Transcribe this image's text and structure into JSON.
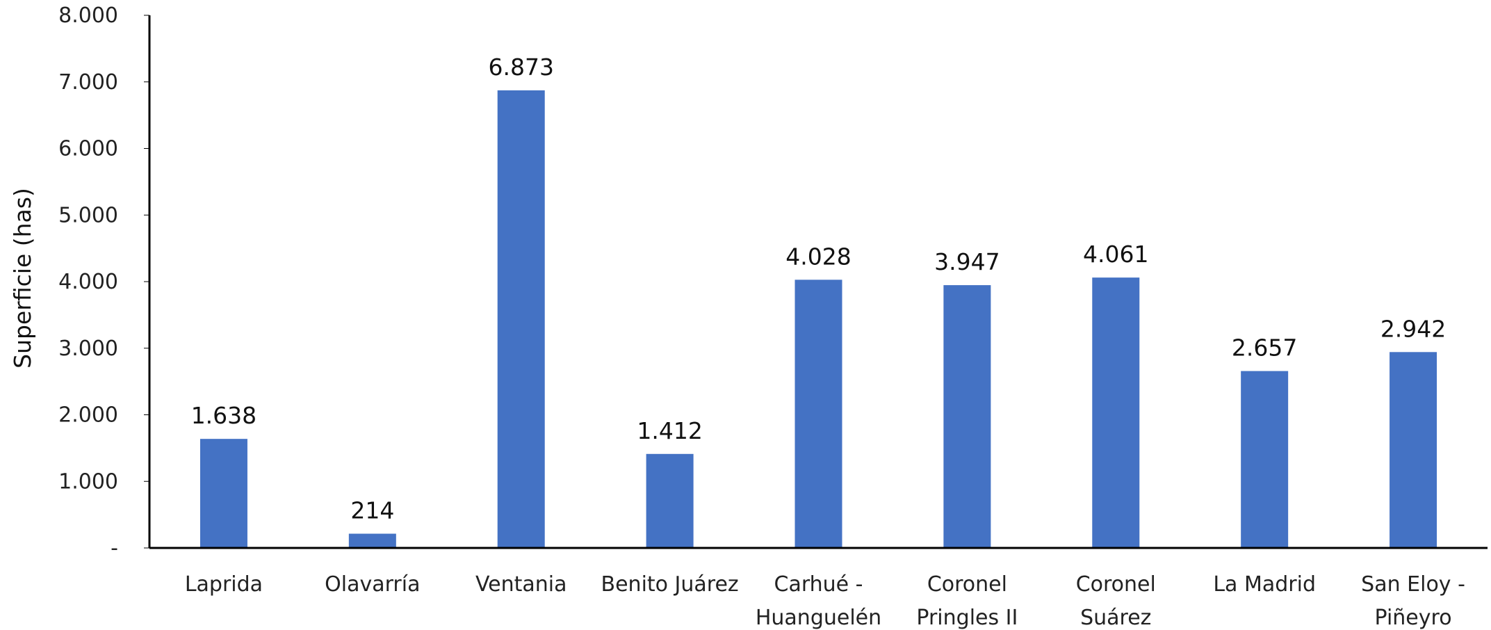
{
  "chart_data": {
    "type": "bar",
    "title": "",
    "xlabel": "",
    "ylabel": "Superficie (has)",
    "ylim": [
      0,
      8000
    ],
    "yticks": [
      0,
      1000,
      2000,
      3000,
      4000,
      5000,
      6000,
      7000,
      8000
    ],
    "ytick_labels": [
      "-",
      "1.000",
      "2.000",
      "3.000",
      "4.000",
      "5.000",
      "6.000",
      "7.000",
      "8.000"
    ],
    "categories": [
      [
        "Laprida"
      ],
      [
        "Olavarría"
      ],
      [
        "Ventania"
      ],
      [
        "Benito Juárez"
      ],
      [
        "Carhué -",
        "Huanguelén"
      ],
      [
        "Coronel",
        "Pringles II"
      ],
      [
        "Coronel",
        "Suárez"
      ],
      [
        "La Madrid"
      ],
      [
        "San Eloy -",
        "Piñeyro"
      ]
    ],
    "values": [
      1638,
      214,
      6873,
      1412,
      4028,
      3947,
      4061,
      2657,
      2942
    ],
    "data_labels": [
      "1.638",
      "214",
      "6.873",
      "1.412",
      "4.028",
      "3.947",
      "4.061",
      "2.657",
      "2.942"
    ],
    "grid": false,
    "legend": "none",
    "bar_color": "#4472c4",
    "axis_color": "#000000"
  },
  "brand": {
    "color": "#35b24a"
  }
}
